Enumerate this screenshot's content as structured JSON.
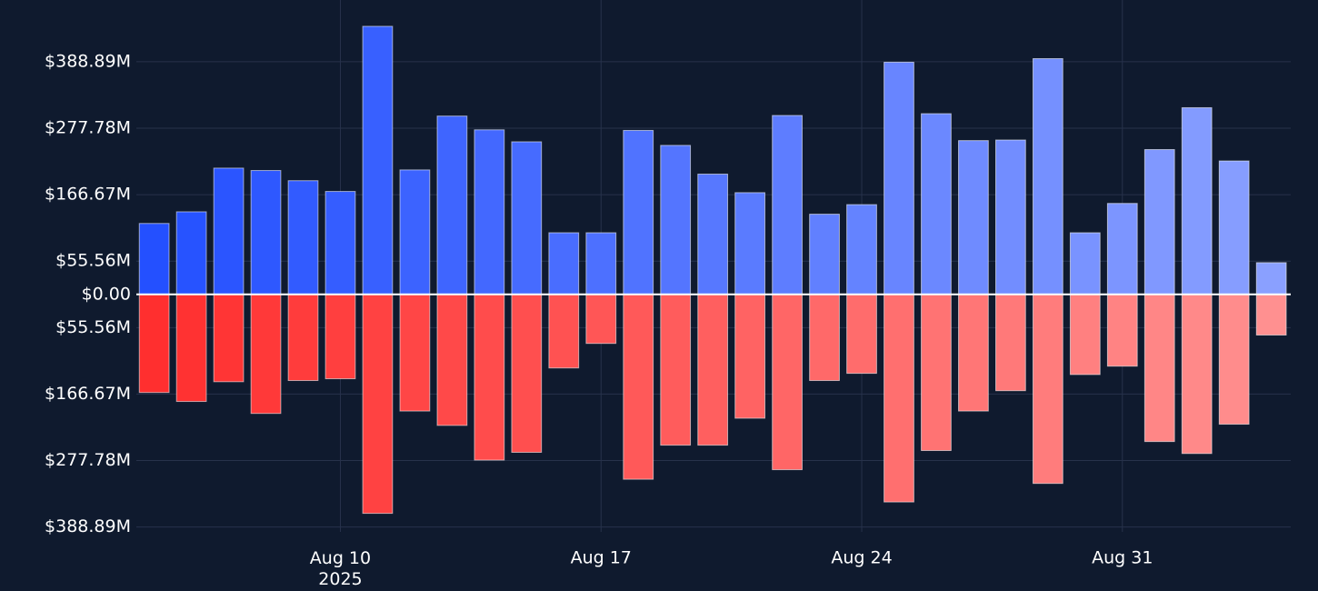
{
  "chart_data": {
    "type": "bar",
    "x": [
      "2025-08-05",
      "2025-08-06",
      "2025-08-07",
      "2025-08-08",
      "2025-08-09",
      "2025-08-10",
      "2025-08-11",
      "2025-08-12",
      "2025-08-13",
      "2025-08-14",
      "2025-08-15",
      "2025-08-16",
      "2025-08-17",
      "2025-08-18",
      "2025-08-19",
      "2025-08-20",
      "2025-08-21",
      "2025-08-22",
      "2025-08-23",
      "2025-08-24",
      "2025-08-25",
      "2025-08-26",
      "2025-08-27",
      "2025-08-28",
      "2025-08-29",
      "2025-08-30",
      "2025-08-31",
      "2025-09-01",
      "2025-09-02",
      "2025-09-03",
      "2025-09-04"
    ],
    "series": [
      {
        "values": [
          118.5,
          138,
          211,
          207,
          190,
          172,
          448,
          208,
          298,
          275,
          255,
          103,
          103,
          274,
          249,
          201,
          170,
          299,
          134,
          150,
          388,
          302,
          257,
          258,
          394,
          103,
          152,
          242,
          312,
          223,
          53
        ],
        "colors": [
          "#2450ff",
          "#2753ff",
          "#2b55ff",
          "#2e58ff",
          "#325bff",
          "#355dff",
          "#3860ff",
          "#3c63ff",
          "#3f65ff",
          "#4368ff",
          "#466bff",
          "#496dff",
          "#4d70ff",
          "#5073ff",
          "#5475ff",
          "#5778ff",
          "#5a7bff",
          "#5e7dff",
          "#6180ff",
          "#6483ff",
          "#6885ff",
          "#6b88ff",
          "#6f8bff",
          "#728dff",
          "#7590ff",
          "#7993ff",
          "#7c95ff",
          "#8098ff",
          "#839bff",
          "#869dff",
          "#8aa0ff"
        ]
      },
      {
        "values": [
          -164,
          -179,
          -146,
          -199,
          -144,
          -141,
          -366,
          -195,
          -219,
          -277,
          -264,
          -123,
          -82,
          -309,
          -252,
          -252,
          -207,
          -293,
          -144,
          -132,
          -347,
          -261,
          -195,
          -161,
          -316,
          -134,
          -120,
          -246,
          -266,
          -217,
          -68
        ],
        "colors": [
          "#ff2f2f",
          "#ff3232",
          "#ff3535",
          "#ff3939",
          "#ff3c3c",
          "#ff3f3f",
          "#ff4242",
          "#ff4646",
          "#ff4949",
          "#ff4c4c",
          "#ff4f4f",
          "#ff5252",
          "#ff5656",
          "#ff5959",
          "#ff5c5c",
          "#ff5f5f",
          "#ff6363",
          "#ff6666",
          "#ff6969",
          "#ff6c6c",
          "#ff6f6f",
          "#ff7373",
          "#ff7676",
          "#ff7979",
          "#ff7c7c",
          "#ff8080",
          "#ff8383",
          "#ff8686",
          "#ff8989",
          "#ff8c8c",
          "#ff9090"
        ]
      }
    ],
    "ylim": [
      -397,
      492
    ],
    "yticks": [
      {
        "value": 388.89,
        "label": "$388.89M"
      },
      {
        "value": 277.78,
        "label": "$277.78M"
      },
      {
        "value": 166.67,
        "label": "$166.67M"
      },
      {
        "value": 55.56,
        "label": "$55.56M"
      },
      {
        "value": 0,
        "label": "$0.00"
      },
      {
        "value": -55.56,
        "label": "$55.56M"
      },
      {
        "value": -166.67,
        "label": "$166.67M"
      },
      {
        "value": -277.78,
        "label": "$277.78M"
      },
      {
        "value": -388.89,
        "label": "$388.89M"
      }
    ],
    "xlim": [
      "2025-08-04T12:30:00Z",
      "2025-09-04T12:30:00Z"
    ],
    "xticks": [
      {
        "value": "2025-08-10",
        "label": "Aug 10\n2025"
      },
      {
        "value": "2025-08-17",
        "label": "Aug 17"
      },
      {
        "value": "2025-08-24",
        "label": "Aug 24"
      },
      {
        "value": "2025-08-31",
        "label": "Aug 31"
      }
    ],
    "grid": true
  }
}
